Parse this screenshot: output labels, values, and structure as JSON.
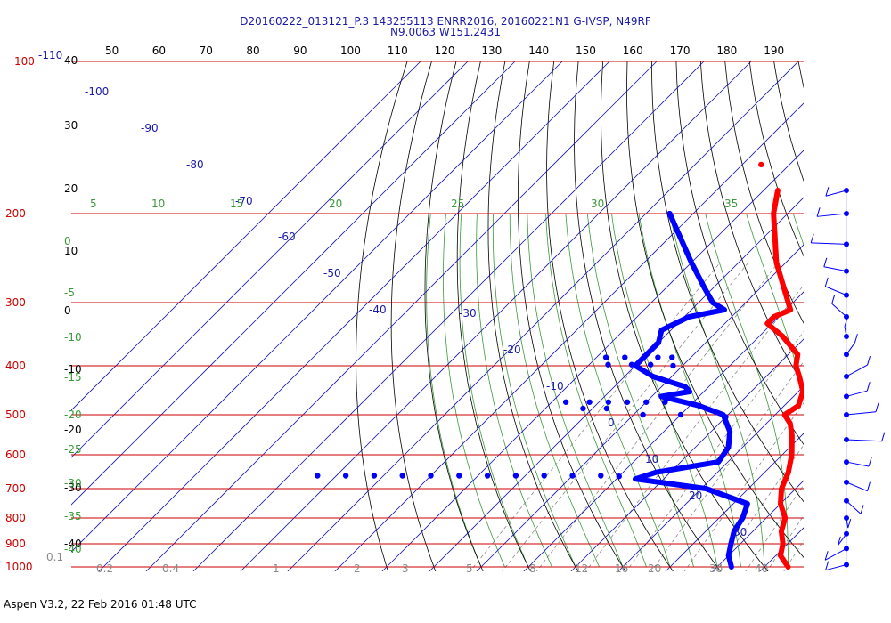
{
  "header": {
    "line1": "D20160222_013121_P.3 143255113 ENRR2016, 20160221N1 G-IVSP, N49RF",
    "line2": "N9.0063 W151.2431"
  },
  "footer": {
    "text": "Aspen V3.2, 22 Feb 2016  01:48 UTC"
  },
  "colors": {
    "isobar": "#cc0000",
    "isotherm": "#1a1aa8",
    "dry_adiabat": "#000000",
    "moist_adiabat": "#3a9a3a",
    "mixing_ratio": "#8a8a8a",
    "temperature": "#ff0000",
    "dewpoint": "#0000ff",
    "wind": "#0000ff"
  },
  "chart_data": {
    "type": "skew-t log-p",
    "pressure_ticks": [
      "100",
      "200",
      "300",
      "400",
      "500",
      "600",
      "700",
      "800",
      "900",
      "1000"
    ],
    "temperature_axis_labels": [
      "-110",
      "-100",
      "-90",
      "-80",
      "-70",
      "-60",
      "-50",
      "-40",
      "-30",
      "-20",
      "-10",
      "0",
      "10",
      "20",
      "30"
    ],
    "potential_temp_labels": [
      "40",
      "50",
      "60",
      "70",
      "80",
      "90",
      "100",
      "110",
      "120",
      "130",
      "140",
      "150",
      "160",
      "170",
      "180",
      "190"
    ],
    "dry_adiabat_labels": [
      "40",
      "30",
      "20",
      "10",
      "0",
      "-10",
      "-20",
      "-30",
      "-40"
    ],
    "moist_adiabat_labels": [
      "5",
      "10",
      "15",
      "20",
      "25",
      "30",
      "35"
    ],
    "moist_left_labels": [
      "0",
      "-5",
      "-10",
      "-15",
      "-20",
      "-25",
      "-30",
      "-35",
      "-40"
    ],
    "mixing_ratio_labels": [
      "0.1",
      "0.2",
      "0.4",
      "1",
      "2",
      "3",
      "5",
      "8",
      "12",
      "16",
      "20",
      "30",
      "40"
    ],
    "temperature_profile": [
      {
        "p": 180,
        "t": -57
      },
      {
        "p": 200,
        "t": -53
      },
      {
        "p": 250,
        "t": -42
      },
      {
        "p": 300,
        "t": -31
      },
      {
        "p": 310,
        "t": -29
      },
      {
        "p": 320,
        "t": -31
      },
      {
        "p": 330,
        "t": -31
      },
      {
        "p": 350,
        "t": -25
      },
      {
        "p": 380,
        "t": -18
      },
      {
        "p": 400,
        "t": -16
      },
      {
        "p": 420,
        "t": -13
      },
      {
        "p": 450,
        "t": -9
      },
      {
        "p": 480,
        "t": -7
      },
      {
        "p": 500,
        "t": -8
      },
      {
        "p": 520,
        "t": -5
      },
      {
        "p": 550,
        "t": -2
      },
      {
        "p": 600,
        "t": 2
      },
      {
        "p": 650,
        "t": 5
      },
      {
        "p": 700,
        "t": 7
      },
      {
        "p": 750,
        "t": 10
      },
      {
        "p": 800,
        "t": 14
      },
      {
        "p": 850,
        "t": 16
      },
      {
        "p": 900,
        "t": 19
      },
      {
        "p": 950,
        "t": 21
      },
      {
        "p": 1000,
        "t": 25
      }
    ],
    "dewpoint_profile": [
      {
        "p": 200,
        "t": -75
      },
      {
        "p": 250,
        "t": -60
      },
      {
        "p": 280,
        "t": -52
      },
      {
        "p": 300,
        "t": -47
      },
      {
        "p": 310,
        "t": -43
      },
      {
        "p": 320,
        "t": -49
      },
      {
        "p": 340,
        "t": -52
      },
      {
        "p": 360,
        "t": -50
      },
      {
        "p": 400,
        "t": -50
      },
      {
        "p": 420,
        "t": -44
      },
      {
        "p": 440,
        "t": -35
      },
      {
        "p": 450,
        "t": -33
      },
      {
        "p": 460,
        "t": -38
      },
      {
        "p": 480,
        "t": -28
      },
      {
        "p": 500,
        "t": -21
      },
      {
        "p": 540,
        "t": -16
      },
      {
        "p": 580,
        "t": -13
      },
      {
        "p": 620,
        "t": -12
      },
      {
        "p": 650,
        "t": -23
      },
      {
        "p": 670,
        "t": -26
      },
      {
        "p": 700,
        "t": -9
      },
      {
        "p": 750,
        "t": 3
      },
      {
        "p": 800,
        "t": 5
      },
      {
        "p": 850,
        "t": 6
      },
      {
        "p": 900,
        "t": 8
      },
      {
        "p": 950,
        "t": 10
      },
      {
        "p": 1000,
        "t": 13
      }
    ],
    "isolated_points": [
      {
        "p": 160,
        "t": -66,
        "series": "temperature"
      }
    ],
    "dewpoint_scatter": [
      {
        "p": 385,
        "t": -58
      },
      {
        "p": 385,
        "t": -54
      },
      {
        "p": 385,
        "t": -50
      },
      {
        "p": 385,
        "t": -47
      },
      {
        "p": 385,
        "t": -44
      },
      {
        "p": 398,
        "t": -56
      },
      {
        "p": 398,
        "t": -51
      },
      {
        "p": 398,
        "t": -47
      },
      {
        "p": 400,
        "t": -42
      },
      {
        "p": 472,
        "t": -57
      },
      {
        "p": 472,
        "t": -52
      },
      {
        "p": 472,
        "t": -48
      },
      {
        "p": 472,
        "t": -44
      },
      {
        "p": 472,
        "t": -40
      },
      {
        "p": 472,
        "t": -36
      },
      {
        "p": 486,
        "t": -52
      },
      {
        "p": 486,
        "t": -47
      },
      {
        "p": 500,
        "t": -38
      },
      {
        "p": 500,
        "t": -30
      },
      {
        "p": 505,
        "t": -20
      },
      {
        "p": 660,
        "t": -94
      },
      {
        "p": 660,
        "t": -88
      },
      {
        "p": 660,
        "t": -82
      },
      {
        "p": 660,
        "t": -76
      },
      {
        "p": 660,
        "t": -70
      },
      {
        "p": 660,
        "t": -64
      },
      {
        "p": 660,
        "t": -58
      },
      {
        "p": 660,
        "t": -52
      },
      {
        "p": 660,
        "t": -46
      },
      {
        "p": 660,
        "t": -40
      },
      {
        "p": 660,
        "t": -34
      },
      {
        "p": 662,
        "t": -30
      }
    ],
    "wind_barb_levels": [
      180,
      200,
      230,
      260,
      290,
      320,
      350,
      380,
      420,
      460,
      500,
      560,
      620,
      680,
      740,
      800,
      860,
      920,
      990
    ]
  }
}
